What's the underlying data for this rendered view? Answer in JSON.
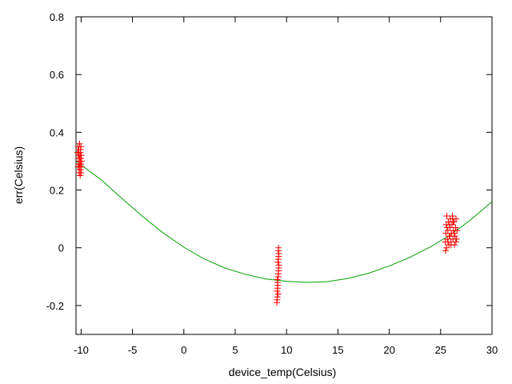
{
  "chart_data": {
    "type": "scatter",
    "title": "",
    "xlabel": "device_temp(Celsius)",
    "ylabel": "err(Celsius)",
    "xlim": [
      -10.5,
      30
    ],
    "ylim": [
      -0.3,
      0.8
    ],
    "x_ticks": [
      "-10",
      "-5",
      "0",
      "5",
      "10",
      "15",
      "20",
      "25",
      "30"
    ],
    "x_tick_values": [
      -10,
      -5,
      0,
      5,
      10,
      15,
      20,
      25,
      30
    ],
    "y_ticks": [
      "-0.2",
      "0",
      "0.2",
      "0.4",
      "0.6",
      "0.8"
    ],
    "y_tick_values": [
      -0.2,
      0,
      0.2,
      0.4,
      0.6,
      0.8
    ],
    "grid": false,
    "legend": "none",
    "colors": {
      "points": "#ff0000",
      "fit": "#00a000",
      "axis": "#000000"
    },
    "series": [
      {
        "kind": "points",
        "marker": "plus",
        "clusters": [
          {
            "x_range": [
              -10.4,
              -9.9
            ],
            "y_range": [
              0.25,
              0.36
            ]
          },
          {
            "x_range": [
              9.0,
              9.3
            ],
            "y_range": [
              -0.19,
              0.0
            ]
          },
          {
            "x_range": [
              25.4,
              26.6
            ],
            "y_range": [
              -0.01,
              0.11
            ]
          }
        ],
        "points": [
          [
            -10.35,
            0.33
          ],
          [
            -10.3,
            0.35
          ],
          [
            -10.28,
            0.31
          ],
          [
            -10.25,
            0.29
          ],
          [
            -10.22,
            0.34
          ],
          [
            -10.2,
            0.32
          ],
          [
            -10.18,
            0.28
          ],
          [
            -10.15,
            0.36
          ],
          [
            -10.12,
            0.3
          ],
          [
            -10.1,
            0.27
          ],
          [
            -10.08,
            0.33
          ],
          [
            -10.05,
            0.31
          ],
          [
            -10.02,
            0.29
          ],
          [
            -10.0,
            0.26
          ],
          [
            -9.98,
            0.32
          ],
          [
            -9.95,
            0.3
          ],
          [
            -10.3,
            0.28
          ],
          [
            -10.2,
            0.26
          ],
          [
            -10.1,
            0.25
          ],
          [
            -10.05,
            0.34
          ],
          [
            -9.97,
            0.28
          ],
          [
            -10.15,
            0.31
          ],
          [
            -10.25,
            0.33
          ],
          [
            -10.02,
            0.35
          ],
          [
            -10.12,
            0.29
          ],
          [
            9.05,
            -0.19
          ],
          [
            9.1,
            -0.17
          ],
          [
            9.08,
            -0.15
          ],
          [
            9.15,
            -0.13
          ],
          [
            9.12,
            -0.12
          ],
          [
            9.18,
            -0.1
          ],
          [
            9.2,
            -0.09
          ],
          [
            9.22,
            -0.08
          ],
          [
            9.1,
            -0.11
          ],
          [
            9.25,
            -0.06
          ],
          [
            9.15,
            -0.05
          ],
          [
            9.2,
            -0.04
          ],
          [
            9.22,
            -0.03
          ],
          [
            9.25,
            -0.02
          ],
          [
            9.2,
            -0.01
          ],
          [
            9.22,
            0.0
          ],
          [
            9.12,
            -0.14
          ],
          [
            9.18,
            -0.16
          ],
          [
            9.08,
            -0.18
          ],
          [
            9.24,
            -0.07
          ],
          [
            25.45,
            0.02
          ],
          [
            25.5,
            0.05
          ],
          [
            25.55,
            0.08
          ],
          [
            25.6,
            0.11
          ],
          [
            25.48,
            -0.01
          ],
          [
            25.65,
            0.03
          ],
          [
            25.7,
            0.06
          ],
          [
            25.75,
            0.09
          ],
          [
            25.8,
            0.01
          ],
          [
            25.85,
            0.04
          ],
          [
            25.9,
            0.07
          ],
          [
            25.95,
            0.1
          ],
          [
            26.0,
            0.02
          ],
          [
            26.05,
            0.05
          ],
          [
            26.1,
            0.08
          ],
          [
            26.15,
            0.11
          ],
          [
            26.2,
            0.03
          ],
          [
            26.25,
            0.06
          ],
          [
            26.3,
            0.09
          ],
          [
            26.35,
            0.01
          ],
          [
            26.4,
            0.04
          ],
          [
            26.45,
            0.07
          ],
          [
            26.5,
            0.1
          ],
          [
            26.55,
            0.03
          ],
          [
            26.6,
            0.06
          ],
          [
            25.58,
            0.0
          ],
          [
            25.72,
            0.02
          ],
          [
            25.88,
            0.08
          ],
          [
            26.02,
            0.01
          ],
          [
            26.18,
            0.1
          ],
          [
            26.32,
            0.05
          ],
          [
            26.48,
            0.02
          ],
          [
            25.62,
            0.07
          ],
          [
            25.92,
            0.04
          ],
          [
            26.22,
            0.09
          ]
        ]
      },
      {
        "kind": "line",
        "fit": "quadratic",
        "anchor_points": [
          [
            -10.5,
            0.3
          ],
          [
            9.2,
            -0.11
          ],
          [
            12,
            -0.12
          ],
          [
            30,
            0.16
          ]
        ],
        "points": [
          [
            -10.5,
            0.3
          ],
          [
            -8,
            0.234
          ],
          [
            -6,
            0.17
          ],
          [
            -4,
            0.108
          ],
          [
            -2,
            0.051
          ],
          [
            0,
            0.002
          ],
          [
            2,
            -0.039
          ],
          [
            4,
            -0.07
          ],
          [
            6,
            -0.092
          ],
          [
            8,
            -0.108
          ],
          [
            10,
            -0.116
          ],
          [
            12,
            -0.12
          ],
          [
            14,
            -0.117
          ],
          [
            16,
            -0.106
          ],
          [
            18,
            -0.088
          ],
          [
            20,
            -0.063
          ],
          [
            22,
            -0.033
          ],
          [
            24,
            0.003
          ],
          [
            26,
            0.046
          ],
          [
            28,
            0.099
          ],
          [
            30,
            0.16
          ]
        ]
      }
    ]
  }
}
